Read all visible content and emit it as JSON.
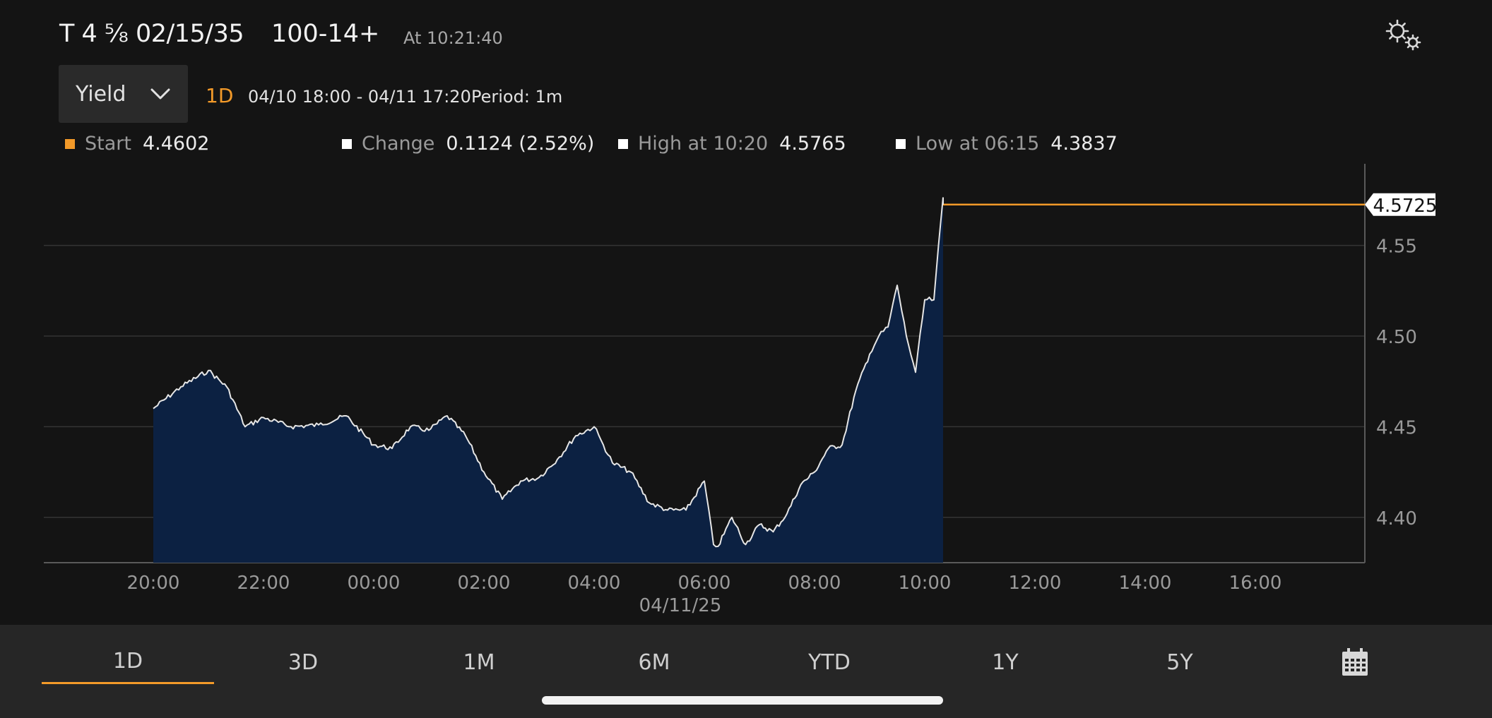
{
  "header": {
    "security": "T 4 ⅝ 02/15/35",
    "price": "100-14+",
    "timestamp": "At 10:21:40",
    "settings_icon": "gears-icon"
  },
  "controls": {
    "field_select": "Yield",
    "range_badge": "1D",
    "date_range": "04/10 18:00 - 04/11 17:20",
    "period": "Period: 1m"
  },
  "stats": {
    "start_label": "Start",
    "start_value": "4.4602",
    "change_label": "Change",
    "change_value": "0.1124 (2.52%)",
    "high_label": "High at 10:20",
    "high_value": "4.5765",
    "low_label": "Low at 06:15",
    "low_value": "4.3837"
  },
  "colors": {
    "accent": "#f39a29",
    "line": "#e6e6e6",
    "area": "#0c2142",
    "grid": "#343434",
    "background": "#141414"
  },
  "chart_data": {
    "type": "area",
    "ylim": [
      4.375,
      4.595
    ],
    "y_ticks": [
      4.4,
      4.45,
      4.5,
      4.55
    ],
    "y_tick_labels": [
      "4.40",
      "4.45",
      "4.50",
      "4.55"
    ],
    "x_tick_labels": [
      "20:00",
      "22:00",
      "00:00",
      "02:00",
      "04:00",
      "06:00",
      "08:00",
      "10:00",
      "12:00",
      "14:00",
      "16:00"
    ],
    "x_date_label": "04/11/25",
    "last_value": 4.5725,
    "last_value_label": "4.5725",
    "series": [
      {
        "x": [
          "20:00",
          "20:30",
          "21:00",
          "21:20",
          "21:40",
          "22:00",
          "22:30",
          "23:00",
          "23:30",
          "00:00",
          "00:20",
          "00:40",
          "01:00",
          "01:20",
          "01:40",
          "02:00",
          "02:20",
          "02:40",
          "03:00",
          "03:20",
          "03:40",
          "04:00",
          "04:10",
          "04:20",
          "04:40",
          "05:00",
          "05:20",
          "05:40",
          "06:00",
          "06:10",
          "06:15",
          "06:30",
          "06:45",
          "07:00",
          "07:15",
          "07:30",
          "07:45",
          "08:00",
          "08:15",
          "08:30",
          "08:45",
          "09:00",
          "09:10",
          "09:20",
          "09:30",
          "09:40",
          "09:50",
          "10:00",
          "10:10",
          "10:15",
          "10:20"
        ],
        "y": [
          4.46,
          4.472,
          4.481,
          4.472,
          4.45,
          4.455,
          4.45,
          4.451,
          4.456,
          4.44,
          4.438,
          4.45,
          4.448,
          4.456,
          4.445,
          4.425,
          4.41,
          4.42,
          4.422,
          4.432,
          4.445,
          4.45,
          4.44,
          4.43,
          4.425,
          4.408,
          4.404,
          4.404,
          4.42,
          4.385,
          4.384,
          4.4,
          4.385,
          4.396,
          4.392,
          4.402,
          4.418,
          4.425,
          4.438,
          4.44,
          4.47,
          4.49,
          4.5,
          4.505,
          4.528,
          4.5,
          4.48,
          4.52,
          4.52,
          4.55,
          4.5765
        ]
      }
    ]
  },
  "tabs": [
    "1D",
    "3D",
    "1M",
    "6M",
    "YTD",
    "1Y",
    "5Y"
  ],
  "calendar_icon": "calendar-icon"
}
